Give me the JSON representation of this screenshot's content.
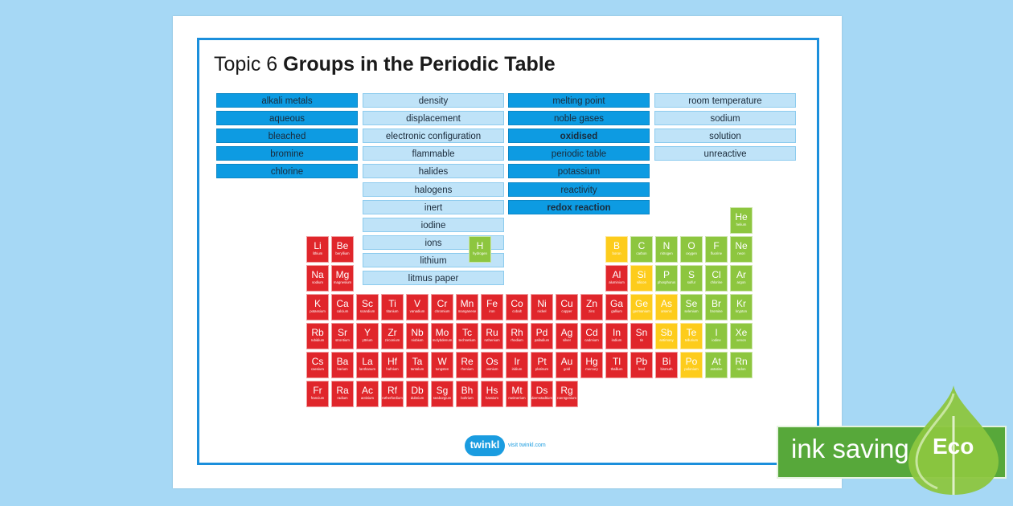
{
  "title": {
    "prefix": "Topic 6",
    "main": "Groups in the Periodic Table"
  },
  "keyword_columns": [
    [
      {
        "text": "alkali metals",
        "style": "dark",
        "bold": false
      },
      {
        "text": "aqueous",
        "style": "dark",
        "bold": false
      },
      {
        "text": "bleached",
        "style": "dark",
        "bold": false
      },
      {
        "text": "bromine",
        "style": "dark",
        "bold": false
      },
      {
        "text": "chlorine",
        "style": "dark",
        "bold": false
      }
    ],
    [
      {
        "text": "density",
        "style": "light",
        "bold": false
      },
      {
        "text": "displacement",
        "style": "light",
        "bold": false
      },
      {
        "text": "electronic configuration",
        "style": "light",
        "bold": false
      },
      {
        "text": "flammable",
        "style": "light",
        "bold": false
      },
      {
        "text": "halides",
        "style": "light",
        "bold": false
      },
      {
        "text": "halogens",
        "style": "light",
        "bold": false
      },
      {
        "text": "inert",
        "style": "light",
        "bold": false
      },
      {
        "text": "iodine",
        "style": "light",
        "bold": false
      },
      {
        "text": "ions",
        "style": "light",
        "bold": false
      },
      {
        "text": "lithium",
        "style": "light",
        "bold": false
      },
      {
        "text": "litmus paper",
        "style": "light",
        "bold": false
      }
    ],
    [
      {
        "text": "melting point",
        "style": "dark",
        "bold": false
      },
      {
        "text": "noble gases",
        "style": "dark",
        "bold": false
      },
      {
        "text": "oxidised",
        "style": "dark",
        "bold": true
      },
      {
        "text": "periodic table",
        "style": "dark",
        "bold": false
      },
      {
        "text": "potassium",
        "style": "dark",
        "bold": false
      },
      {
        "text": "reactivity",
        "style": "dark",
        "bold": false
      },
      {
        "text": "redox reaction",
        "style": "dark",
        "bold": true
      }
    ],
    [
      {
        "text": "room temperature",
        "style": "light",
        "bold": false
      },
      {
        "text": "sodium",
        "style": "light",
        "bold": false
      },
      {
        "text": "solution",
        "style": "light",
        "bold": false
      },
      {
        "text": "unreactive",
        "style": "light",
        "bold": false
      }
    ]
  ],
  "element_colors": {
    "metal": "#e0262b",
    "metalloid": "#fdcc1c",
    "nonmetal": "#8dc63f"
  },
  "hydrogen": {
    "symbol": "H",
    "name": "hydrogen",
    "type": "non"
  },
  "periodic_rows": [
    {
      "period": 1,
      "elements": [
        {
          "g": 18,
          "s": "He",
          "n": "helium",
          "t": "non"
        }
      ]
    },
    {
      "period": 2,
      "elements": [
        {
          "g": 1,
          "s": "Li",
          "n": "lithium",
          "t": "metal"
        },
        {
          "g": 2,
          "s": "Be",
          "n": "beryllium",
          "t": "metal"
        },
        {
          "g": 13,
          "s": "B",
          "n": "boron",
          "t": "metalloid"
        },
        {
          "g": 14,
          "s": "C",
          "n": "carbon",
          "t": "non"
        },
        {
          "g": 15,
          "s": "N",
          "n": "nitrogen",
          "t": "non"
        },
        {
          "g": 16,
          "s": "O",
          "n": "oxygen",
          "t": "non"
        },
        {
          "g": 17,
          "s": "F",
          "n": "fluorine",
          "t": "non"
        },
        {
          "g": 18,
          "s": "Ne",
          "n": "neon",
          "t": "non"
        }
      ]
    },
    {
      "period": 3,
      "elements": [
        {
          "g": 1,
          "s": "Na",
          "n": "sodium",
          "t": "metal"
        },
        {
          "g": 2,
          "s": "Mg",
          "n": "magnesium",
          "t": "metal"
        },
        {
          "g": 13,
          "s": "Al",
          "n": "aluminium",
          "t": "metal"
        },
        {
          "g": 14,
          "s": "Si",
          "n": "silicon",
          "t": "metalloid"
        },
        {
          "g": 15,
          "s": "P",
          "n": "phosphorus",
          "t": "non"
        },
        {
          "g": 16,
          "s": "S",
          "n": "sulfur",
          "t": "non"
        },
        {
          "g": 17,
          "s": "Cl",
          "n": "chlorine",
          "t": "non"
        },
        {
          "g": 18,
          "s": "Ar",
          "n": "argon",
          "t": "non"
        }
      ]
    },
    {
      "period": 4,
      "elements": [
        {
          "g": 1,
          "s": "K",
          "n": "potassium",
          "t": "metal"
        },
        {
          "g": 2,
          "s": "Ca",
          "n": "calcium",
          "t": "metal"
        },
        {
          "g": 3,
          "s": "Sc",
          "n": "scandium",
          "t": "metal"
        },
        {
          "g": 4,
          "s": "Ti",
          "n": "titanium",
          "t": "metal"
        },
        {
          "g": 5,
          "s": "V",
          "n": "vanadium",
          "t": "metal"
        },
        {
          "g": 6,
          "s": "Cr",
          "n": "chromium",
          "t": "metal"
        },
        {
          "g": 7,
          "s": "Mn",
          "n": "manganese",
          "t": "metal"
        },
        {
          "g": 8,
          "s": "Fe",
          "n": "iron",
          "t": "metal"
        },
        {
          "g": 9,
          "s": "Co",
          "n": "cobalt",
          "t": "metal"
        },
        {
          "g": 10,
          "s": "Ni",
          "n": "nickel",
          "t": "metal"
        },
        {
          "g": 11,
          "s": "Cu",
          "n": "copper",
          "t": "metal"
        },
        {
          "g": 12,
          "s": "Zn",
          "n": "zinc",
          "t": "metal"
        },
        {
          "g": 13,
          "s": "Ga",
          "n": "gallium",
          "t": "metal"
        },
        {
          "g": 14,
          "s": "Ge",
          "n": "germanium",
          "t": "metalloid"
        },
        {
          "g": 15,
          "s": "As",
          "n": "arsenic",
          "t": "metalloid"
        },
        {
          "g": 16,
          "s": "Se",
          "n": "selenium",
          "t": "non"
        },
        {
          "g": 17,
          "s": "Br",
          "n": "bromine",
          "t": "non"
        },
        {
          "g": 18,
          "s": "Kr",
          "n": "krypton",
          "t": "non"
        }
      ]
    },
    {
      "period": 5,
      "elements": [
        {
          "g": 1,
          "s": "Rb",
          "n": "rubidium",
          "t": "metal"
        },
        {
          "g": 2,
          "s": "Sr",
          "n": "strontium",
          "t": "metal"
        },
        {
          "g": 3,
          "s": "Y",
          "n": "yttrium",
          "t": "metal"
        },
        {
          "g": 4,
          "s": "Zr",
          "n": "zirconium",
          "t": "metal"
        },
        {
          "g": 5,
          "s": "Nb",
          "n": "niobium",
          "t": "metal"
        },
        {
          "g": 6,
          "s": "Mo",
          "n": "molybdenum",
          "t": "metal"
        },
        {
          "g": 7,
          "s": "Tc",
          "n": "technetium",
          "t": "metal"
        },
        {
          "g": 8,
          "s": "Ru",
          "n": "ruthenium",
          "t": "metal"
        },
        {
          "g": 9,
          "s": "Rh",
          "n": "rhodium",
          "t": "metal"
        },
        {
          "g": 10,
          "s": "Pd",
          "n": "palladium",
          "t": "metal"
        },
        {
          "g": 11,
          "s": "Ag",
          "n": "silver",
          "t": "metal"
        },
        {
          "g": 12,
          "s": "Cd",
          "n": "cadmium",
          "t": "metal"
        },
        {
          "g": 13,
          "s": "In",
          "n": "indium",
          "t": "metal"
        },
        {
          "g": 14,
          "s": "Sn",
          "n": "tin",
          "t": "metal"
        },
        {
          "g": 15,
          "s": "Sb",
          "n": "antimony",
          "t": "metalloid"
        },
        {
          "g": 16,
          "s": "Te",
          "n": "tellurium",
          "t": "metalloid"
        },
        {
          "g": 17,
          "s": "I",
          "n": "iodine",
          "t": "non"
        },
        {
          "g": 18,
          "s": "Xe",
          "n": "xenon",
          "t": "non"
        }
      ]
    },
    {
      "period": 6,
      "elements": [
        {
          "g": 1,
          "s": "Cs",
          "n": "caesium",
          "t": "metal"
        },
        {
          "g": 2,
          "s": "Ba",
          "n": "barium",
          "t": "metal"
        },
        {
          "g": 3,
          "s": "La",
          "n": "lanthanum",
          "t": "metal"
        },
        {
          "g": 4,
          "s": "Hf",
          "n": "hafnium",
          "t": "metal"
        },
        {
          "g": 5,
          "s": "Ta",
          "n": "tantalum",
          "t": "metal"
        },
        {
          "g": 6,
          "s": "W",
          "n": "tungsten",
          "t": "metal"
        },
        {
          "g": 7,
          "s": "Re",
          "n": "rhenium",
          "t": "metal"
        },
        {
          "g": 8,
          "s": "Os",
          "n": "osmium",
          "t": "metal"
        },
        {
          "g": 9,
          "s": "Ir",
          "n": "iridium",
          "t": "metal"
        },
        {
          "g": 10,
          "s": "Pt",
          "n": "platinum",
          "t": "metal"
        },
        {
          "g": 11,
          "s": "Au",
          "n": "gold",
          "t": "metal"
        },
        {
          "g": 12,
          "s": "Hg",
          "n": "mercury",
          "t": "metal"
        },
        {
          "g": 13,
          "s": "Tl",
          "n": "thallium",
          "t": "metal"
        },
        {
          "g": 14,
          "s": "Pb",
          "n": "lead",
          "t": "metal"
        },
        {
          "g": 15,
          "s": "Bi",
          "n": "bismuth",
          "t": "metal"
        },
        {
          "g": 16,
          "s": "Po",
          "n": "polonium",
          "t": "metalloid"
        },
        {
          "g": 17,
          "s": "At",
          "n": "astatine",
          "t": "non"
        },
        {
          "g": 18,
          "s": "Rn",
          "n": "radon",
          "t": "non"
        }
      ]
    },
    {
      "period": 7,
      "elements": [
        {
          "g": 1,
          "s": "Fr",
          "n": "francium",
          "t": "metal"
        },
        {
          "g": 2,
          "s": "Ra",
          "n": "radium",
          "t": "metal"
        },
        {
          "g": 3,
          "s": "Ac",
          "n": "actinium",
          "t": "metal"
        },
        {
          "g": 4,
          "s": "Rf",
          "n": "rutherfordium",
          "t": "metal"
        },
        {
          "g": 5,
          "s": "Db",
          "n": "dubnium",
          "t": "metal"
        },
        {
          "g": 6,
          "s": "Sg",
          "n": "seaborgium",
          "t": "metal"
        },
        {
          "g": 7,
          "s": "Bh",
          "n": "bohrium",
          "t": "metal"
        },
        {
          "g": 8,
          "s": "Hs",
          "n": "hassium",
          "t": "metal"
        },
        {
          "g": 9,
          "s": "Mt",
          "n": "meitnerium",
          "t": "metal"
        },
        {
          "g": 10,
          "s": "Ds",
          "n": "darmstadtium",
          "t": "metal"
        },
        {
          "g": 11,
          "s": "Rg",
          "n": "roentgenium",
          "t": "metal"
        }
      ]
    }
  ],
  "footer": {
    "logo": "twinkl",
    "visit": "visit twinkl.com"
  },
  "eco_badge": {
    "text": "ink saving",
    "label": "Eco",
    "color": "#57a83a"
  }
}
